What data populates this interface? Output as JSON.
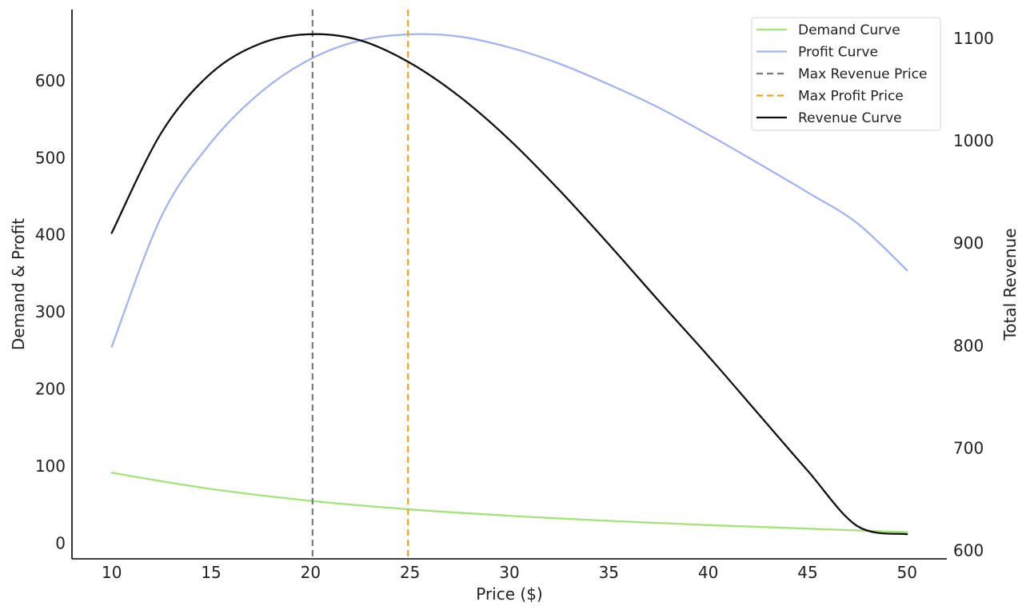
{
  "chart_data": {
    "type": "line",
    "xlabel": "Price ($)",
    "ylabel_left": "Demand & Profit",
    "ylabel_right": "Total Revenue",
    "xlim": [
      8,
      52
    ],
    "ylim_left": [
      -20,
      692
    ],
    "ylim_right": [
      592,
      1128
    ],
    "x_ticks": [
      10,
      15,
      20,
      25,
      30,
      35,
      40,
      45,
      50
    ],
    "y_left_ticks": [
      0,
      100,
      200,
      300,
      400,
      500,
      600
    ],
    "y_right_ticks": [
      600,
      700,
      800,
      900,
      1000,
      1100
    ],
    "grid": false,
    "legend_position": "top-right",
    "series": [
      {
        "name": "Demand Curve",
        "axis": "left",
        "color": "#a6e27c",
        "dash": "solid",
        "x": [
          10,
          15,
          20,
          25,
          30,
          35,
          40,
          45,
          50
        ],
        "y": [
          91.5,
          70.6,
          55.2,
          44.1,
          35.9,
          29.2,
          23.7,
          19.2,
          14.5
        ]
      },
      {
        "name": "Profit Curve",
        "axis": "left",
        "color": "#a3b4f0",
        "dash": "solid",
        "x": [
          10,
          12.5,
          15,
          17.5,
          20,
          22.5,
          25,
          27.5,
          30,
          32.5,
          35,
          37.5,
          40,
          42.5,
          45,
          47.5,
          50
        ],
        "y": [
          255,
          424,
          520,
          585,
          628,
          652,
          660,
          657,
          643,
          622,
          595,
          565,
          530,
          493,
          455,
          415,
          354
        ]
      },
      {
        "name": "Max Revenue Price",
        "axis": "left",
        "color": "#7a7a7a",
        "dash": "dashed",
        "vline_x": 20.1
      },
      {
        "name": "Max Profit Price",
        "axis": "left",
        "color": "#f5a31a",
        "dash": "dashed",
        "vline_x": 24.9
      },
      {
        "name": "Revenue Curve",
        "axis": "right",
        "color": "#111111",
        "dash": "solid",
        "x": [
          10,
          12.5,
          15,
          17.5,
          20,
          22.5,
          25,
          27.5,
          30,
          32.5,
          35,
          37.5,
          40,
          42.5,
          45,
          47.5,
          50
        ],
        "y": [
          910,
          1008,
          1066,
          1095,
          1104,
          1098,
          1076,
          1043,
          1001,
          952,
          899,
          844,
          790,
          734,
          678,
          624,
          616
        ]
      }
    ]
  }
}
